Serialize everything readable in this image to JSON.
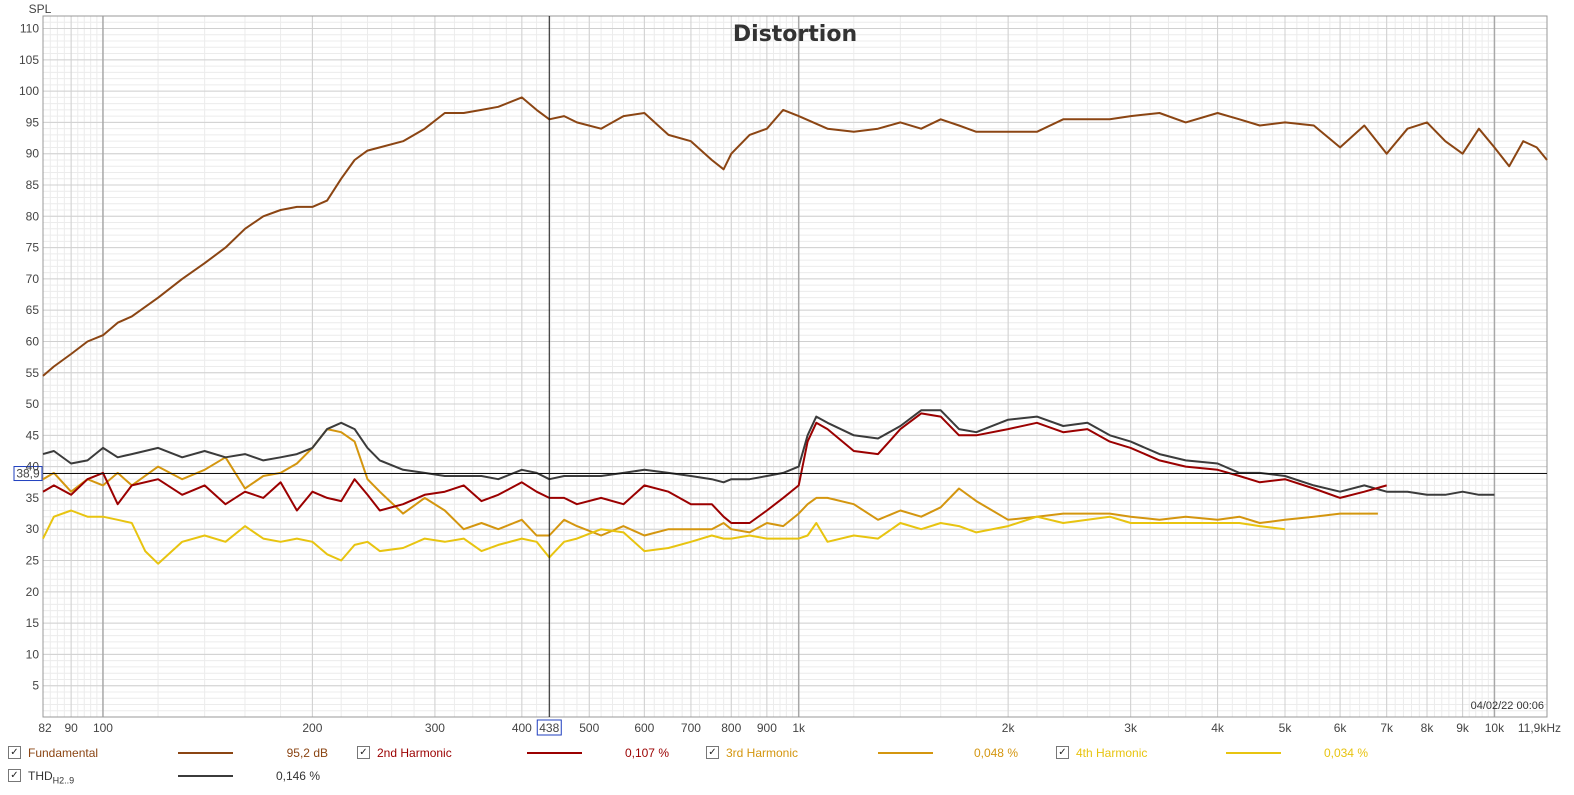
{
  "chart_data": {
    "type": "line",
    "title": "Distortion",
    "ylabel": "SPL",
    "x_scale": "log",
    "xlim": [
      82,
      11900
    ],
    "ylim": [
      0,
      112
    ],
    "x_ticks": [
      {
        "v": 82,
        "label": "82"
      },
      {
        "v": 90,
        "label": "90"
      },
      {
        "v": 100,
        "label": "100"
      },
      {
        "v": 200,
        "label": "200"
      },
      {
        "v": 300,
        "label": "300"
      },
      {
        "v": 400,
        "label": "400"
      },
      {
        "v": 500,
        "label": "500"
      },
      {
        "v": 600,
        "label": "600"
      },
      {
        "v": 700,
        "label": "700"
      },
      {
        "v": 800,
        "label": "800"
      },
      {
        "v": 900,
        "label": "900"
      },
      {
        "v": 1000,
        "label": "1k"
      },
      {
        "v": 2000,
        "label": "2k"
      },
      {
        "v": 3000,
        "label": "3k"
      },
      {
        "v": 4000,
        "label": "4k"
      },
      {
        "v": 5000,
        "label": "5k"
      },
      {
        "v": 6000,
        "label": "6k"
      },
      {
        "v": 7000,
        "label": "7k"
      },
      {
        "v": 8000,
        "label": "8k"
      },
      {
        "v": 9000,
        "label": "9k"
      },
      {
        "v": 10000,
        "label": "10k"
      },
      {
        "v": 11900,
        "label": "11,9kHz"
      }
    ],
    "y_ticks": [
      5,
      10,
      15,
      20,
      25,
      30,
      35,
      40,
      45,
      50,
      55,
      60,
      65,
      70,
      75,
      80,
      85,
      90,
      95,
      100,
      105,
      110
    ],
    "cursor": {
      "x": 438,
      "x_label": "438",
      "y": 38.9,
      "y_label": "38,9"
    },
    "grid": true,
    "legend": "bottom",
    "timestamp": "04/02/22 00:06",
    "series": [
      {
        "name": "Fundamental",
        "color": "#8b4513",
        "x": [
          82,
          85,
          90,
          95,
          100,
          105,
          110,
          120,
          130,
          140,
          150,
          160,
          170,
          180,
          190,
          200,
          210,
          220,
          230,
          240,
          250,
          270,
          290,
          310,
          330,
          350,
          370,
          400,
          420,
          438,
          460,
          480,
          520,
          560,
          600,
          650,
          700,
          750,
          780,
          800,
          850,
          900,
          950,
          1000,
          1100,
          1200,
          1300,
          1400,
          1500,
          1600,
          1700,
          1800,
          2000,
          2200,
          2400,
          2600,
          2800,
          3000,
          3300,
          3600,
          4000,
          4300,
          4600,
          5000,
          5500,
          6000,
          6500,
          7000,
          7500,
          8000,
          8500,
          9000,
          9500,
          10000,
          10500,
          11000,
          11500,
          11900
        ],
        "y": [
          54.5,
          56,
          58,
          60,
          61,
          63,
          64,
          67,
          70,
          72.5,
          75,
          78,
          80,
          81,
          81.5,
          81.5,
          82.5,
          86,
          89,
          90.5,
          91,
          92,
          94,
          96.5,
          96.5,
          97,
          97.5,
          99,
          97,
          95.5,
          96,
          95,
          94,
          96,
          96.5,
          93,
          92,
          89,
          87.5,
          90,
          93,
          94,
          97,
          96,
          94,
          93.5,
          94,
          95,
          94,
          95.5,
          94.5,
          93.5,
          93.5,
          93.5,
          95.5,
          95.5,
          95.5,
          96,
          96.5,
          95,
          96.5,
          95.5,
          94.5,
          95,
          94.5,
          91,
          94.5,
          90,
          94,
          95,
          92,
          90,
          94,
          91,
          88,
          92,
          91,
          89
        ]
      },
      {
        "name": "2nd Harmonic",
        "color": "#9b0000",
        "value": "0,107 %",
        "x": [
          82,
          85,
          90,
          95,
          100,
          105,
          110,
          120,
          130,
          140,
          150,
          160,
          170,
          180,
          190,
          200,
          210,
          220,
          230,
          240,
          250,
          270,
          290,
          310,
          330,
          350,
          370,
          400,
          420,
          438,
          460,
          480,
          520,
          560,
          600,
          650,
          700,
          750,
          780,
          800,
          850,
          900,
          950,
          1000,
          1030,
          1060,
          1100,
          1200,
          1300,
          1400,
          1500,
          1600,
          1700,
          1800,
          2000,
          2200,
          2400,
          2600,
          2800,
          3000,
          3300,
          3600,
          4000,
          4300,
          4600,
          5000,
          5500,
          6000,
          6500,
          7000
        ],
        "y": [
          36,
          37,
          35.5,
          38,
          39,
          34,
          37,
          38,
          35.5,
          37,
          34,
          36,
          35,
          37.5,
          33,
          36,
          35,
          34.5,
          38,
          35.5,
          33,
          34,
          35.5,
          36,
          37,
          34.5,
          35.5,
          37.5,
          36,
          35,
          35,
          34,
          35,
          34,
          37,
          36,
          34,
          34,
          32,
          31,
          31,
          33,
          35,
          37,
          44,
          47,
          46,
          42.5,
          42,
          46,
          48.5,
          48,
          45,
          45,
          46,
          47,
          45.5,
          46,
          44,
          43,
          41,
          40,
          39.5,
          38.5,
          37.5,
          38,
          36.5,
          35,
          36,
          37
        ]
      },
      {
        "name": "3rd Harmonic",
        "color": "#d4960f",
        "value": "0,048 %",
        "x": [
          82,
          85,
          90,
          95,
          100,
          105,
          110,
          120,
          130,
          140,
          150,
          160,
          170,
          180,
          190,
          200,
          210,
          220,
          230,
          240,
          250,
          270,
          290,
          310,
          330,
          350,
          370,
          400,
          420,
          438,
          460,
          480,
          520,
          560,
          600,
          650,
          700,
          750,
          780,
          800,
          850,
          900,
          950,
          1000,
          1030,
          1060,
          1100,
          1200,
          1300,
          1400,
          1500,
          1600,
          1700,
          1800,
          2000,
          2200,
          2400,
          2600,
          2800,
          3000,
          3300,
          3600,
          4000,
          4300,
          4600,
          5000,
          5500,
          6000,
          6500,
          6800
        ],
        "y": [
          38,
          39,
          36,
          38,
          37,
          39,
          37,
          40,
          38,
          39.5,
          41.5,
          36.5,
          38.5,
          39,
          40.5,
          43,
          46,
          45.5,
          44,
          38,
          36,
          32.5,
          35,
          33,
          30,
          31,
          30,
          31.5,
          29,
          29,
          31.5,
          30.5,
          29,
          30.5,
          29,
          30,
          30,
          30,
          31,
          30,
          29.5,
          31,
          30.5,
          32.5,
          34,
          35,
          35,
          34,
          31.5,
          33,
          32,
          33.5,
          36.5,
          34.5,
          31.5,
          32,
          32.5,
          32.5,
          32.5,
          32,
          31.5,
          32,
          31.5,
          32,
          31,
          31.5,
          32,
          32.5,
          32.5,
          32.5
        ]
      },
      {
        "name": "4th Harmonic",
        "color": "#e8c410",
        "value": "0,034 %",
        "x": [
          82,
          85,
          90,
          95,
          100,
          105,
          110,
          115,
          120,
          130,
          140,
          150,
          160,
          170,
          180,
          190,
          200,
          210,
          220,
          230,
          240,
          250,
          270,
          290,
          310,
          330,
          350,
          370,
          400,
          420,
          438,
          460,
          480,
          520,
          560,
          600,
          650,
          700,
          750,
          780,
          800,
          850,
          900,
          950,
          1000,
          1030,
          1060,
          1100,
          1200,
          1300,
          1400,
          1500,
          1600,
          1700,
          1800,
          2000,
          2200,
          2400,
          2600,
          2800,
          3000,
          3300,
          3600,
          4000,
          4300,
          4600,
          5000
        ],
        "y": [
          28.5,
          32,
          33,
          32,
          32,
          31.5,
          31,
          26.5,
          24.5,
          28,
          29,
          28,
          30.5,
          28.5,
          28,
          28.5,
          28,
          26,
          25,
          27.5,
          28,
          26.5,
          27,
          28.5,
          28,
          28.5,
          26.5,
          27.5,
          28.5,
          28,
          25.5,
          28,
          28.5,
          30,
          29.5,
          26.5,
          27,
          28,
          29,
          28.5,
          28.5,
          29,
          28.5,
          28.5,
          28.5,
          29,
          31,
          28,
          29,
          28.5,
          31,
          30,
          31,
          30.5,
          29.5,
          30.5,
          32,
          31,
          31.5,
          32,
          31,
          31,
          31,
          31,
          31,
          30.5,
          30
        ]
      },
      {
        "name": "THD H2..9",
        "color": "#3b3b3b",
        "value": "0,146 %",
        "x": [
          82,
          85,
          90,
          95,
          100,
          105,
          110,
          120,
          130,
          140,
          150,
          160,
          170,
          180,
          190,
          200,
          210,
          220,
          230,
          240,
          250,
          270,
          290,
          310,
          330,
          350,
          370,
          400,
          420,
          438,
          460,
          480,
          520,
          560,
          600,
          650,
          700,
          750,
          780,
          800,
          850,
          900,
          950,
          1000,
          1030,
          1060,
          1100,
          1200,
          1300,
          1400,
          1500,
          1600,
          1700,
          1800,
          2000,
          2200,
          2400,
          2600,
          2800,
          3000,
          3300,
          3600,
          4000,
          4300,
          4600,
          5000,
          5500,
          6000,
          6500,
          7000,
          7500,
          8000,
          8500,
          9000,
          9500,
          10000
        ],
        "y": [
          42,
          42.5,
          40.5,
          41,
          43,
          41.5,
          42,
          43,
          41.5,
          42.5,
          41.5,
          42,
          41,
          41.5,
          42,
          43,
          46,
          47,
          46,
          43,
          41,
          39.5,
          39,
          38.5,
          38.5,
          38.5,
          38,
          39.5,
          39,
          38,
          38.5,
          38.5,
          38.5,
          39,
          39.5,
          39,
          38.5,
          38,
          37.5,
          38,
          38,
          38.5,
          39,
          40,
          45,
          48,
          47,
          45,
          44.5,
          46.5,
          49,
          49,
          46,
          45.5,
          47.5,
          48,
          46.5,
          47,
          45,
          44,
          42,
          41,
          40.5,
          39,
          39,
          38.5,
          37,
          36,
          37,
          36,
          36,
          35.5,
          35.5,
          36,
          35.5,
          35.5
        ]
      }
    ]
  },
  "legend": {
    "fundamental": {
      "label": "Fundamental",
      "value": "95,2 dB"
    },
    "h2": {
      "label": "2nd Harmonic",
      "value": "0,107 %"
    },
    "h3": {
      "label": "3rd Harmonic",
      "value": "0,048 %"
    },
    "h4": {
      "label": "4th Harmonic",
      "value": "0,034 %"
    },
    "thd": {
      "label": "THD",
      "sub": "H2..9",
      "value": "0,146 %"
    }
  }
}
